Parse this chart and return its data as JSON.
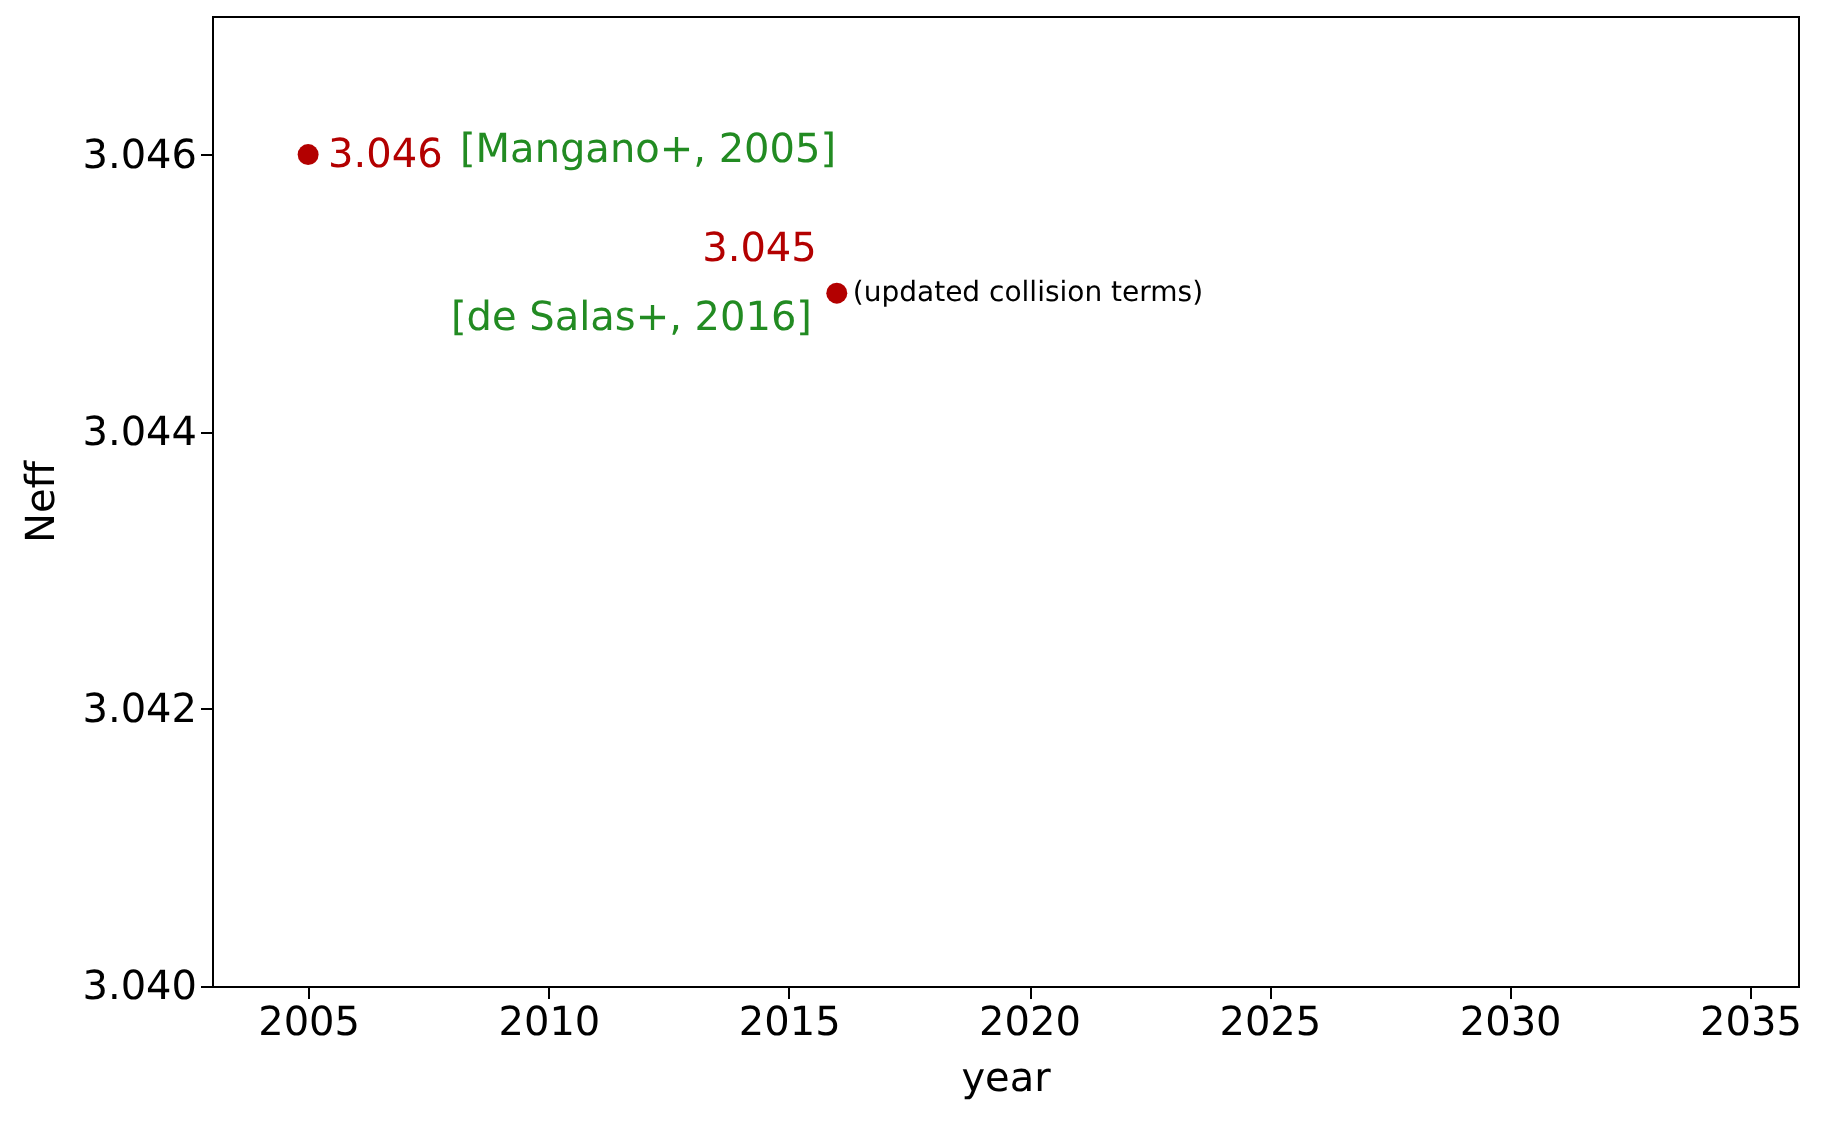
{
  "chart_data": {
    "type": "scatter",
    "xlabel": "year",
    "ylabel": "Neff",
    "x": [
      2005,
      2016
    ],
    "series": [
      {
        "color": "#b30000",
        "values": [
          3.046,
          3.045
        ]
      }
    ],
    "data_labels": true,
    "annotations": [
      "[Mangano+, 2005]",
      "[de Salas+, 2016]",
      {
        "text": "(updated collision terms)",
        "x": 2016,
        "y": 3.045
      }
    ],
    "xlim": [
      2003,
      2036
    ],
    "xticks": [
      2005,
      2010,
      2015,
      2020,
      2025,
      2030,
      2035
    ],
    "ylim": [
      3.04,
      3.047
    ],
    "yticks": [
      {
        "value": 3.04,
        "label": "3.040"
      },
      {
        "value": 3.042,
        "label": "3.042"
      },
      {
        "value": 3.044,
        "label": "3.044"
      },
      {
        "value": 3.046,
        "label": "3.046"
      }
    ],
    "grid": false,
    "marker": "circle"
  }
}
